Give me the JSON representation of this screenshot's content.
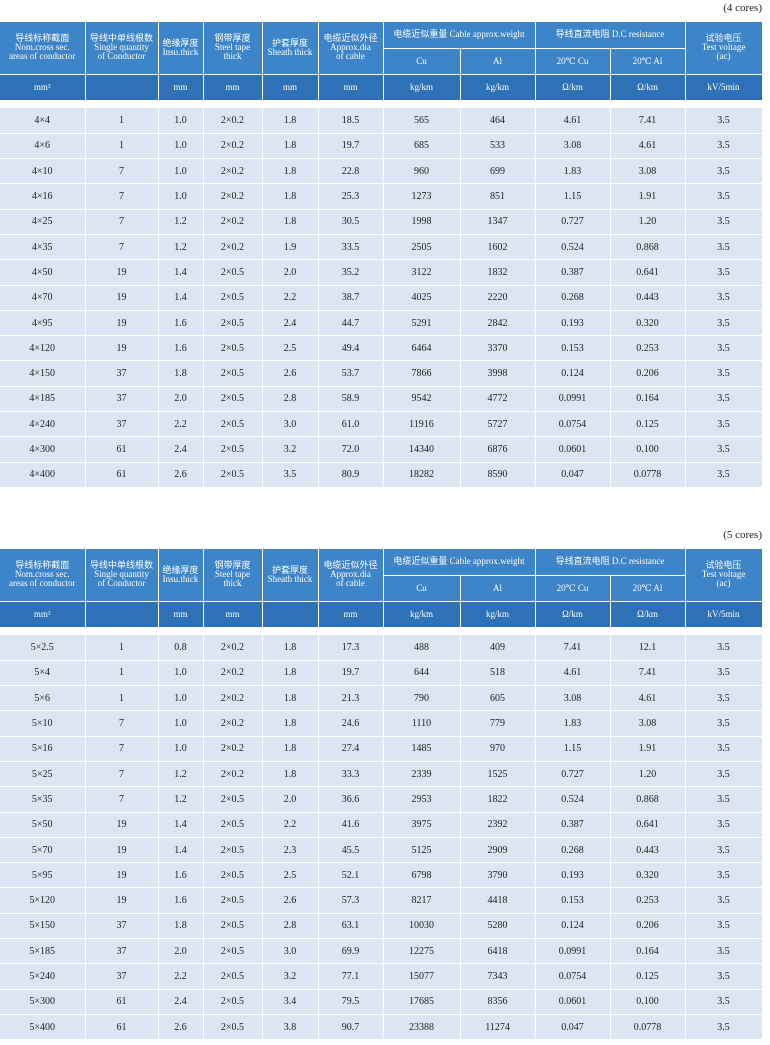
{
  "tables": [
    {
      "caption": "(4 cores)",
      "columns": [
        {
          "lines": [
            "导线标称截面",
            "Nom.cross sec.",
            "areas of conductor"
          ],
          "unit": "mm²"
        },
        {
          "lines": [
            "导线中单线根数",
            "Single quantity",
            "of Conductor"
          ]
        },
        {
          "lines": [
            "绝缘厚度",
            "Insu.thick"
          ],
          "unit": "mm"
        },
        {
          "lines": [
            "钢带厚度",
            "Steel tape",
            "thick"
          ],
          "unit": "mm"
        },
        {
          "lines": [
            "护套厚度",
            "Sheath thick"
          ],
          "unit": "mm"
        },
        {
          "lines": [
            "电缆近似外径",
            "Approx.dia",
            "of cable"
          ],
          "unit": "mm"
        },
        {
          "title": "电缆近似重量 Cable approx.weight",
          "subs": [
            {
              "label": "Cu",
              "unit": "kg/km"
            },
            {
              "label": "Al",
              "unit": "kg/km"
            }
          ]
        },
        {
          "title": "导线直流电阻 D.C resistance",
          "subs": [
            {
              "label": "20℃ Cu",
              "unit": "Ω/km"
            },
            {
              "label": "20℃ Al",
              "unit": "Ω/km"
            }
          ]
        },
        {
          "lines": [
            "试验电压",
            "Test voltage",
            "(ac)"
          ],
          "unit": "kV/5min"
        }
      ],
      "rows": [
        [
          "4×4",
          "1",
          "1.0",
          "2×0.2",
          "1.8",
          "18.5",
          "565",
          "464",
          "4.61",
          "7.41",
          "3.5"
        ],
        [
          "4×6",
          "1",
          "1.0",
          "2×0.2",
          "1.8",
          "19.7",
          "685",
          "533",
          "3.08",
          "4.61",
          "3.5"
        ],
        [
          "4×10",
          "7",
          "1.0",
          "2×0.2",
          "1.8",
          "22.8",
          "960",
          "699",
          "1.83",
          "3.08",
          "3.5"
        ],
        [
          "4×16",
          "7",
          "1.0",
          "2×0.2",
          "1.8",
          "25.3",
          "1273",
          "851",
          "1.15",
          "1.91",
          "3.5"
        ],
        [
          "4×25",
          "7",
          "1.2",
          "2×0.2",
          "1.8",
          "30.5",
          "1998",
          "1347",
          "0.727",
          "1.20",
          "3.5"
        ],
        [
          "4×35",
          "7",
          "1.2",
          "2×0.2",
          "1.9",
          "33.5",
          "2505",
          "1602",
          "0.524",
          "0.868",
          "3.5"
        ],
        [
          "4×50",
          "19",
          "1.4",
          "2×0.5",
          "2.0",
          "35.2",
          "3122",
          "1832",
          "0.387",
          "0.641",
          "3.5"
        ],
        [
          "4×70",
          "19",
          "1.4",
          "2×0.5",
          "2.2",
          "38.7",
          "4025",
          "2220",
          "0.268",
          "0.443",
          "3.5"
        ],
        [
          "4×95",
          "19",
          "1.6",
          "2×0.5",
          "2.4",
          "44.7",
          "5291",
          "2842",
          "0.193",
          "0.320",
          "3.5"
        ],
        [
          "4×120",
          "19",
          "1.6",
          "2×0.5",
          "2.5",
          "49.4",
          "6464",
          "3370",
          "0.153",
          "0.253",
          "3.5"
        ],
        [
          "4×150",
          "37",
          "1.8",
          "2×0.5",
          "2.6",
          "53.7",
          "7866",
          "3998",
          "0.124",
          "0.206",
          "3.5"
        ],
        [
          "4×185",
          "37",
          "2.0",
          "2×0.5",
          "2.8",
          "58.9",
          "9542",
          "4772",
          "0.0991",
          "0.164",
          "3.5"
        ],
        [
          "4×240",
          "37",
          "2.2",
          "2×0.5",
          "3.0",
          "61.0",
          "11916",
          "5727",
          "0.0754",
          "0.125",
          "3.5"
        ],
        [
          "4×300",
          "61",
          "2.4",
          "2×0.5",
          "3.2",
          "72.0",
          "14340",
          "6876",
          "0.0601",
          "0.100",
          "3.5"
        ],
        [
          "4×400",
          "61",
          "2.6",
          "2×0.5",
          "3.5",
          "80.9",
          "18282",
          "8590",
          "0.047",
          "0.0778",
          "3.5"
        ]
      ]
    },
    {
      "caption": "(5 cores)",
      "columns": [
        {
          "lines": [
            "导线标称截面",
            "Nom.cross sec.",
            "areas of conductor"
          ],
          "unit": "mm²"
        },
        {
          "lines": [
            "导线中单线根数",
            "Single quantity",
            "of Conductor"
          ]
        },
        {
          "lines": [
            "绝缘厚度",
            "Insu.thick"
          ],
          "unit": "mm"
        },
        {
          "lines": [
            "钢带厚度",
            "Steel tape",
            "thick"
          ],
          "unit": "mm"
        },
        {
          "lines": [
            "护套厚度",
            "Sheath thick"
          ]
        },
        {
          "lines": [
            "电缆近似外径",
            "Approx.dia",
            "of cable"
          ],
          "unit": "mm"
        },
        {
          "title": "电缆近似重量 Cable approx.weight",
          "subs": [
            {
              "label": "Cu",
              "unit": "kg/km"
            },
            {
              "label": "Al",
              "unit": "kg/km"
            }
          ]
        },
        {
          "title": "导线直流电阻 D.C resistance",
          "subs": [
            {
              "label": "20℃ Cu",
              "unit": "Ω/km"
            },
            {
              "label": "20℃ Al",
              "unit": "Ω/km"
            }
          ]
        },
        {
          "lines": [
            "试验电压",
            "Test voltage",
            "(ac)"
          ],
          "unit": "kV/5min"
        }
      ],
      "rows": [
        [
          "5×2.5",
          "1",
          "0.8",
          "2×0.2",
          "1.8",
          "17.3",
          "488",
          "409",
          "7.41",
          "12.1",
          "3.5"
        ],
        [
          "5×4",
          "1",
          "1.0",
          "2×0.2",
          "1.8",
          "19.7",
          "644",
          "518",
          "4.61",
          "7.41",
          "3.5"
        ],
        [
          "5×6",
          "1",
          "1.0",
          "2×0.2",
          "1.8",
          "21.3",
          "790",
          "605",
          "3.08",
          "4.61",
          "3.5"
        ],
        [
          "5×10",
          "7",
          "1.0",
          "2×0.2",
          "1.8",
          "24.6",
          "1110",
          "779",
          "1.83",
          "3.08",
          "3.5"
        ],
        [
          "5×16",
          "7",
          "1.0",
          "2×0.2",
          "1.8",
          "27.4",
          "1485",
          "970",
          "1.15",
          "1.91",
          "3.5"
        ],
        [
          "5×25",
          "7",
          "1.2",
          "2×0.2",
          "1.8",
          "33.3",
          "2339",
          "1525",
          "0.727",
          "1.20",
          "3.5"
        ],
        [
          "5×35",
          "7",
          "1.2",
          "2×0.5",
          "2.0",
          "36.6",
          "2953",
          "1822",
          "0.524",
          "0.868",
          "3.5"
        ],
        [
          "5×50",
          "19",
          "1.4",
          "2×0.5",
          "2.2",
          "41.6",
          "3975",
          "2392",
          "0.387",
          "0.641",
          "3.5"
        ],
        [
          "5×70",
          "19",
          "1.4",
          "2×0.5",
          "2.3",
          "45.5",
          "5125",
          "2909",
          "0.268",
          "0.443",
          "3.5"
        ],
        [
          "5×95",
          "19",
          "1.6",
          "2×0.5",
          "2.5",
          "52.1",
          "6798",
          "3790",
          "0.193",
          "0.320",
          "3.5"
        ],
        [
          "5×120",
          "19",
          "1.6",
          "2×0.5",
          "2.6",
          "57.3",
          "8217",
          "4418",
          "0.153",
          "0.253",
          "3.5"
        ],
        [
          "5×150",
          "37",
          "1.8",
          "2×0.5",
          "2.8",
          "63.1",
          "10030",
          "5280",
          "0.124",
          "0.206",
          "3.5"
        ],
        [
          "5×185",
          "37",
          "2.0",
          "2×0.5",
          "3.0",
          "69.9",
          "12275",
          "6418",
          "0.0991",
          "0.164",
          "3.5"
        ],
        [
          "5×240",
          "37",
          "2.2",
          "2×0.5",
          "3.2",
          "77.1",
          "15077",
          "7343",
          "0.0754",
          "0.125",
          "3.5"
        ],
        [
          "5×300",
          "61",
          "2.4",
          "2×0.5",
          "3.4",
          "79.5",
          "17685",
          "8356",
          "0.0601",
          "0.100",
          "3.5"
        ],
        [
          "5×400",
          "61",
          "2.6",
          "2×0.5",
          "3.8",
          "90.7",
          "23388",
          "11274",
          "0.047",
          "0.0778",
          "3.5"
        ]
      ]
    }
  ]
}
